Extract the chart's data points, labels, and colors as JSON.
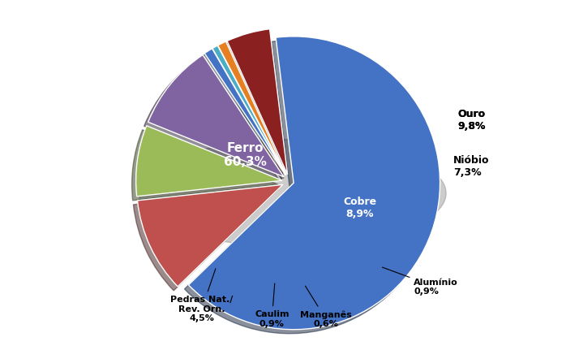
{
  "labels": [
    "Ferro",
    "Ouro",
    "Nióbio",
    "Cobre",
    "Alumínio",
    "Manganês",
    "Caulim",
    "Pedras Nat./\nRev. Orn."
  ],
  "values": [
    60.3,
    9.8,
    7.3,
    8.9,
    0.9,
    0.6,
    0.9,
    4.5
  ],
  "colors": [
    "#4472C4",
    "#C0504D",
    "#9BBB59",
    "#8064A2",
    "#4472C4",
    "#4BACC6",
    "#E67E22",
    "#8B2020"
  ],
  "explode": [
    0.03,
    0.05,
    0.05,
    0.05,
    0.05,
    0.05,
    0.05,
    0.05
  ],
  "startangle": 97,
  "background_color": "#FFFFFF"
}
